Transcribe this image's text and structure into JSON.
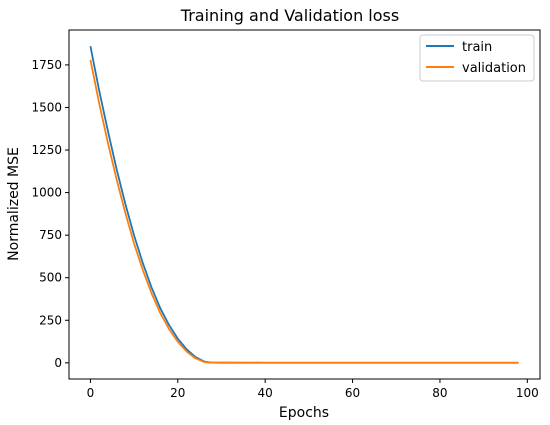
{
  "chart_data": {
    "type": "line",
    "title": "Training and Validation loss",
    "xlabel": "Epochs",
    "ylabel": "Normalized MSE",
    "xlim": [
      -4.9,
      102.9
    ],
    "ylim": [
      -95,
      1955
    ],
    "xticks": [
      0,
      20,
      40,
      60,
      80,
      100
    ],
    "yticks": [
      0,
      250,
      500,
      750,
      1000,
      1250,
      1500,
      1750
    ],
    "grid": false,
    "legend_position": "top-right",
    "series": [
      {
        "name": "train",
        "color": "#1f77b4",
        "x": [
          0,
          2,
          4,
          6,
          8,
          10,
          12,
          14,
          16,
          18,
          20,
          22,
          24,
          26,
          27,
          28,
          30,
          40,
          50,
          60,
          70,
          80,
          90,
          98
        ],
        "y": [
          1860,
          1600,
          1362,
          1137,
          933,
          748,
          585,
          442,
          320,
          222,
          142,
          80,
          35,
          8,
          3,
          1,
          0.8,
          0.6,
          0.5,
          0.5,
          0.5,
          0.5,
          0.5,
          0.5
        ]
      },
      {
        "name": "validation",
        "color": "#ff7f0e",
        "x": [
          0,
          2,
          4,
          6,
          8,
          10,
          12,
          14,
          16,
          18,
          20,
          22,
          24,
          26,
          27,
          28,
          30,
          40,
          50,
          60,
          70,
          80,
          90,
          98
        ],
        "y": [
          1780,
          1525,
          1292,
          1077,
          880,
          700,
          545,
          408,
          292,
          198,
          124,
          67,
          27,
          5,
          2,
          1,
          0.8,
          0.6,
          0.5,
          0.5,
          0.5,
          0.5,
          0.5,
          0.5
        ]
      }
    ]
  }
}
